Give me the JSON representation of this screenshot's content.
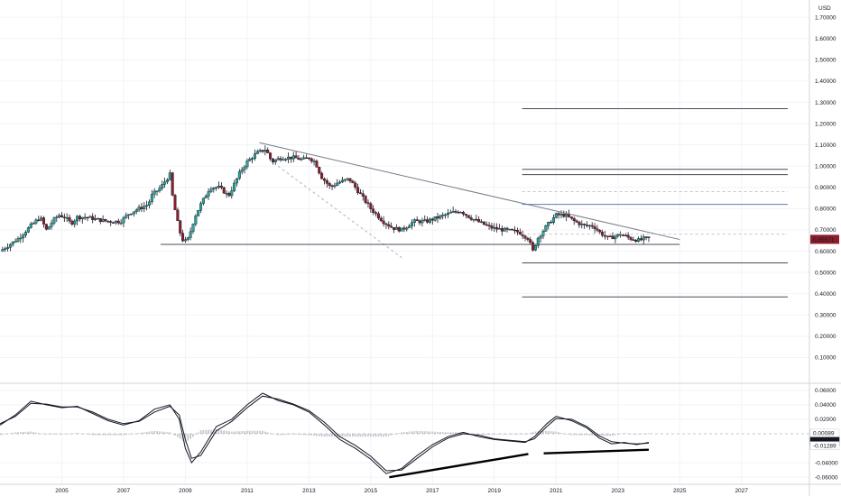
{
  "chart_data": [
    {
      "type": "candlestick",
      "currency_label": "USD",
      "y_ticks": [
        "1.70000",
        "1.60000",
        "1.50000",
        "1.40000",
        "1.30000",
        "1.20000",
        "1.10000",
        "1.00000",
        "0.90000",
        "0.80000",
        "0.70000",
        "0.60000",
        "0.50000",
        "0.40000",
        "0.30000",
        "0.20000",
        "0.10000"
      ],
      "y_tick_values": [
        1.7,
        1.6,
        1.5,
        1.4,
        1.3,
        1.2,
        1.1,
        1.0,
        0.9,
        0.8,
        0.7,
        0.6,
        0.5,
        0.4,
        0.3,
        0.2,
        0.1
      ],
      "ylim": [
        0.0,
        1.76
      ],
      "xlim": [
        2003.0,
        2029.2
      ],
      "last_price": "0.65571",
      "last_price_value": 0.65571,
      "colors": {
        "up": "#26a69a",
        "down": "#8b1e2b",
        "ink": "#131722",
        "price_tag": "#8b1e2b",
        "grid": "#f0f3fa",
        "trendline": "#787b86",
        "level_blue": "#5b7db5"
      },
      "path": [
        [
          2003.0,
          0.6
        ],
        [
          2003.3,
          0.63
        ],
        [
          2003.6,
          0.66
        ],
        [
          2004.0,
          0.72
        ],
        [
          2004.3,
          0.76
        ],
        [
          2004.5,
          0.7
        ],
        [
          2004.7,
          0.74
        ],
        [
          2004.9,
          0.77
        ],
        [
          2005.1,
          0.76
        ],
        [
          2005.3,
          0.73
        ],
        [
          2005.5,
          0.76
        ],
        [
          2005.8,
          0.76
        ],
        [
          2006.1,
          0.75
        ],
        [
          2006.5,
          0.74
        ],
        [
          2006.9,
          0.74
        ],
        [
          2007.2,
          0.78
        ],
        [
          2007.5,
          0.8
        ],
        [
          2007.8,
          0.82
        ],
        [
          2007.9,
          0.86
        ],
        [
          2008.2,
          0.9
        ],
        [
          2008.5,
          0.96
        ],
        [
          2008.6,
          0.84
        ],
        [
          2008.8,
          0.7
        ],
        [
          2008.95,
          0.64
        ],
        [
          2009.1,
          0.66
        ],
        [
          2009.3,
          0.76
        ],
        [
          2009.5,
          0.82
        ],
        [
          2009.8,
          0.9
        ],
        [
          2010.1,
          0.9
        ],
        [
          2010.4,
          0.86
        ],
        [
          2010.6,
          0.92
        ],
        [
          2010.8,
          0.98
        ],
        [
          2011.0,
          1.02
        ],
        [
          2011.3,
          1.06
        ],
        [
          2011.6,
          1.08
        ],
        [
          2011.8,
          1.02
        ],
        [
          2012.1,
          1.04
        ],
        [
          2012.5,
          1.04
        ],
        [
          2012.8,
          1.03
        ],
        [
          2013.0,
          1.04
        ],
        [
          2013.2,
          1.02
        ],
        [
          2013.4,
          0.95
        ],
        [
          2013.7,
          0.9
        ],
        [
          2013.9,
          0.92
        ],
        [
          2014.3,
          0.94
        ],
        [
          2014.5,
          0.9
        ],
        [
          2014.8,
          0.84
        ],
        [
          2015.0,
          0.8
        ],
        [
          2015.4,
          0.74
        ],
        [
          2015.7,
          0.71
        ],
        [
          2016.0,
          0.7
        ],
        [
          2016.4,
          0.74
        ],
        [
          2016.8,
          0.74
        ],
        [
          2017.2,
          0.76
        ],
        [
          2017.6,
          0.78
        ],
        [
          2017.9,
          0.79
        ],
        [
          2018.2,
          0.76
        ],
        [
          2018.6,
          0.73
        ],
        [
          2018.9,
          0.71
        ],
        [
          2019.3,
          0.7
        ],
        [
          2019.8,
          0.69
        ],
        [
          2020.1,
          0.66
        ],
        [
          2020.25,
          0.6
        ],
        [
          2020.4,
          0.66
        ],
        [
          2020.7,
          0.72
        ],
        [
          2021.0,
          0.77
        ],
        [
          2021.3,
          0.77
        ],
        [
          2021.6,
          0.74
        ],
        [
          2021.9,
          0.72
        ],
        [
          2022.2,
          0.72
        ],
        [
          2022.4,
          0.69
        ],
        [
          2022.7,
          0.66
        ],
        [
          2022.9,
          0.67
        ],
        [
          2023.1,
          0.68
        ],
        [
          2023.4,
          0.66
        ],
        [
          2023.7,
          0.65
        ],
        [
          2023.85,
          0.66
        ],
        [
          2024.0,
          0.66
        ]
      ],
      "trendline_main": {
        "from": [
          2011.4,
          1.11
        ],
        "to": [
          2025.0,
          0.655
        ]
      },
      "trendline_dashed": {
        "from": [
          2012.0,
          1.0
        ],
        "to": [
          2016.0,
          0.57
        ]
      },
      "support_line": {
        "from": [
          2008.2,
          0.632
        ],
        "to": [
          2025.0,
          0.632
        ]
      },
      "levels": [
        {
          "y": 1.27,
          "x0": 2019.9,
          "x1": 2028.5,
          "style": "solid"
        },
        {
          "y": 0.985,
          "x0": 2019.9,
          "x1": 2028.5,
          "style": "solid"
        },
        {
          "y": 0.96,
          "x0": 2019.9,
          "x1": 2028.5,
          "style": "solid"
        },
        {
          "y": 0.88,
          "x0": 2019.9,
          "x1": 2028.5,
          "style": "dashed"
        },
        {
          "y": 0.82,
          "x0": 2019.9,
          "x1": 2028.5,
          "style": "blue"
        },
        {
          "y": 0.68,
          "x0": 2019.9,
          "x1": 2028.5,
          "style": "dashed"
        },
        {
          "y": 0.545,
          "x0": 2019.9,
          "x1": 2028.5,
          "style": "solid"
        },
        {
          "y": 0.385,
          "x0": 2019.9,
          "x1": 2028.5,
          "style": "solid"
        }
      ]
    },
    {
      "type": "macd",
      "y_ticks": [
        "0.06000",
        "0.04000",
        "0.02000",
        "-0.04000",
        "-0.06000"
      ],
      "y_tick_values": [
        0.06,
        0.04,
        0.02,
        -0.04,
        -0.06
      ],
      "ylim": [
        -0.066,
        0.066
      ],
      "tags": [
        {
          "label": "0.00089",
          "value": 0.00089,
          "bg": "#ffffff",
          "fg": "#131722"
        },
        {
          "label": "-0.01199",
          "value": -0.01199,
          "bg": "#131722",
          "fg": "#ffffff"
        },
        {
          "label": "-0.01289",
          "value": -0.01289,
          "bg": "#ffffff",
          "fg": "#131722"
        }
      ],
      "macd_line": [
        [
          2003.0,
          0.012
        ],
        [
          2003.5,
          0.026
        ],
        [
          2004.0,
          0.045
        ],
        [
          2004.5,
          0.04
        ],
        [
          2005.0,
          0.036
        ],
        [
          2005.5,
          0.038
        ],
        [
          2006.0,
          0.028
        ],
        [
          2006.5,
          0.018
        ],
        [
          2007.0,
          0.012
        ],
        [
          2007.5,
          0.018
        ],
        [
          2008.0,
          0.034
        ],
        [
          2008.5,
          0.04
        ],
        [
          2008.8,
          0.02
        ],
        [
          2009.0,
          -0.02
        ],
        [
          2009.2,
          -0.04
        ],
        [
          2009.5,
          -0.025
        ],
        [
          2010.0,
          0.01
        ],
        [
          2010.5,
          0.02
        ],
        [
          2011.0,
          0.04
        ],
        [
          2011.5,
          0.056
        ],
        [
          2012.0,
          0.046
        ],
        [
          2012.5,
          0.04
        ],
        [
          2013.0,
          0.03
        ],
        [
          2013.5,
          0.012
        ],
        [
          2014.0,
          -0.008
        ],
        [
          2014.5,
          -0.02
        ],
        [
          2015.0,
          -0.035
        ],
        [
          2015.5,
          -0.055
        ],
        [
          2016.0,
          -0.048
        ],
        [
          2016.5,
          -0.03
        ],
        [
          2017.0,
          -0.015
        ],
        [
          2017.5,
          -0.004
        ],
        [
          2018.0,
          0.002
        ],
        [
          2018.5,
          -0.004
        ],
        [
          2019.0,
          -0.008
        ],
        [
          2019.5,
          -0.01
        ],
        [
          2020.0,
          -0.012
        ],
        [
          2020.3,
          -0.004
        ],
        [
          2020.7,
          0.014
        ],
        [
          2021.0,
          0.024
        ],
        [
          2021.5,
          0.018
        ],
        [
          2022.0,
          0.008
        ],
        [
          2022.4,
          -0.006
        ],
        [
          2022.8,
          -0.014
        ],
        [
          2023.2,
          -0.012
        ],
        [
          2023.6,
          -0.015
        ],
        [
          2024.0,
          -0.012
        ]
      ],
      "signal_line": [
        [
          2003.0,
          0.014
        ],
        [
          2003.5,
          0.024
        ],
        [
          2004.0,
          0.042
        ],
        [
          2004.5,
          0.041
        ],
        [
          2005.0,
          0.037
        ],
        [
          2005.5,
          0.037
        ],
        [
          2006.0,
          0.03
        ],
        [
          2006.5,
          0.02
        ],
        [
          2007.0,
          0.014
        ],
        [
          2007.5,
          0.017
        ],
        [
          2008.0,
          0.03
        ],
        [
          2008.5,
          0.038
        ],
        [
          2008.8,
          0.026
        ],
        [
          2009.0,
          -0.008
        ],
        [
          2009.2,
          -0.034
        ],
        [
          2009.5,
          -0.03
        ],
        [
          2010.0,
          0.004
        ],
        [
          2010.5,
          0.017
        ],
        [
          2011.0,
          0.036
        ],
        [
          2011.5,
          0.052
        ],
        [
          2012.0,
          0.048
        ],
        [
          2012.5,
          0.041
        ],
        [
          2013.0,
          0.032
        ],
        [
          2013.5,
          0.016
        ],
        [
          2014.0,
          -0.004
        ],
        [
          2014.5,
          -0.016
        ],
        [
          2015.0,
          -0.031
        ],
        [
          2015.5,
          -0.051
        ],
        [
          2016.0,
          -0.05
        ],
        [
          2016.5,
          -0.034
        ],
        [
          2017.0,
          -0.018
        ],
        [
          2017.5,
          -0.006
        ],
        [
          2018.0,
          0.0
        ],
        [
          2018.5,
          -0.002
        ],
        [
          2019.0,
          -0.007
        ],
        [
          2019.5,
          -0.009
        ],
        [
          2020.0,
          -0.011
        ],
        [
          2020.3,
          -0.007
        ],
        [
          2020.7,
          0.01
        ],
        [
          2021.0,
          0.021
        ],
        [
          2021.5,
          0.02
        ],
        [
          2022.0,
          0.01
        ],
        [
          2022.4,
          -0.003
        ],
        [
          2022.8,
          -0.011
        ],
        [
          2023.2,
          -0.013
        ],
        [
          2023.6,
          -0.014
        ],
        [
          2024.0,
          -0.0129
        ]
      ],
      "divergence_lines": [
        {
          "from": [
            2015.6,
            -0.06
          ],
          "to": [
            2020.1,
            -0.028
          ]
        },
        {
          "from": [
            2020.6,
            -0.027
          ],
          "to": [
            2024.0,
            -0.022
          ]
        }
      ]
    }
  ],
  "x_axis": {
    "labels": [
      "2005",
      "2007",
      "2009",
      "2011",
      "2013",
      "2015",
      "2017",
      "2019",
      "2021",
      "2023",
      "2025",
      "2027"
    ],
    "values": [
      2005,
      2007,
      2009,
      2011,
      2013,
      2015,
      2017,
      2019,
      2021,
      2023,
      2025,
      2027
    ]
  }
}
